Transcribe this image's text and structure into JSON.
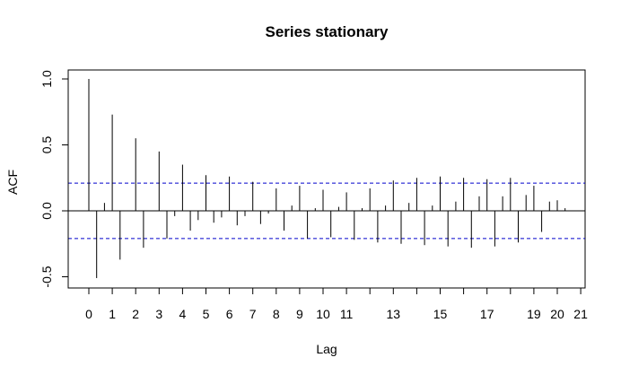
{
  "chart_data": {
    "type": "bar",
    "title": "Series  stationary",
    "xlabel": "Lag",
    "ylabel": "ACF",
    "ylim": [
      -0.6,
      1.05
    ],
    "xlim": [
      -0.1,
      21.3
    ],
    "x_ticks": [
      0,
      1,
      2,
      3,
      4,
      5,
      6,
      7,
      8,
      9,
      10,
      11,
      13,
      15,
      17,
      19,
      20,
      21
    ],
    "y_ticks": [
      -0.5,
      0.0,
      0.5,
      1.0
    ],
    "y_tick_labels": [
      "-0.5",
      "0.0",
      "0.5",
      "1.0"
    ],
    "confidence_bound": 0.21,
    "zero_line": true,
    "grid": false,
    "lags": [
      0,
      0.333,
      0.667,
      1,
      1.333,
      1.667,
      2,
      2.333,
      2.667,
      3,
      3.333,
      3.667,
      4,
      4.333,
      4.667,
      5,
      5.333,
      5.667,
      6,
      6.333,
      6.667,
      7,
      7.333,
      7.667,
      8,
      8.333,
      8.667,
      9,
      9.333,
      9.667,
      10,
      10.333,
      10.667,
      11,
      11.333,
      11.667,
      12,
      12.333,
      12.667,
      13,
      13.333,
      13.667,
      14,
      14.333,
      14.667,
      15,
      15.333,
      15.667,
      16,
      16.333,
      16.667,
      17,
      17.333,
      17.667,
      18,
      18.333,
      18.667,
      19,
      19.333,
      19.667,
      20,
      20.333
    ],
    "values": [
      1.0,
      -0.51,
      0.06,
      0.73,
      -0.37,
      0.0,
      0.55,
      -0.28,
      0.0,
      0.45,
      -0.21,
      -0.04,
      0.35,
      -0.15,
      -0.07,
      0.27,
      -0.09,
      -0.05,
      0.26,
      -0.11,
      -0.04,
      0.22,
      -0.1,
      -0.02,
      0.17,
      -0.15,
      0.04,
      0.19,
      -0.21,
      0.02,
      0.16,
      -0.2,
      0.03,
      0.14,
      -0.22,
      0.02,
      0.17,
      -0.24,
      0.04,
      0.23,
      -0.25,
      0.06,
      0.25,
      -0.26,
      0.04,
      0.26,
      -0.27,
      0.07,
      0.25,
      -0.28,
      0.11,
      0.24,
      -0.27,
      0.11,
      0.25,
      -0.24,
      0.12,
      0.19,
      -0.16,
      0.07,
      0.08,
      0.02
    ]
  }
}
